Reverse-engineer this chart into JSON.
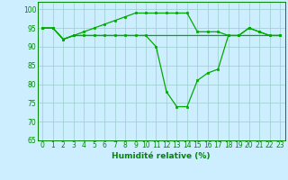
{
  "xlabel": "Humidité relative (%)",
  "background_color": "#cceeff",
  "grid_color": "#99cccc",
  "line_color": "#00aa00",
  "tick_color": "#008800",
  "ylim": [
    65,
    102
  ],
  "xlim": [
    -0.5,
    23.5
  ],
  "yticks": [
    65,
    70,
    75,
    80,
    85,
    90,
    95,
    100
  ],
  "xticks": [
    0,
    1,
    2,
    3,
    4,
    5,
    6,
    7,
    8,
    9,
    10,
    11,
    12,
    13,
    14,
    15,
    16,
    17,
    18,
    19,
    20,
    21,
    22,
    23
  ],
  "line1_x": [
    0,
    1,
    2,
    3,
    4,
    5,
    6,
    7,
    8,
    9,
    10,
    11,
    12,
    13,
    14,
    15,
    16,
    17,
    18,
    19,
    20,
    21,
    22,
    23
  ],
  "line1_y": [
    95,
    95,
    92,
    93,
    94,
    95,
    96,
    97,
    98,
    99,
    99,
    99,
    99,
    99,
    99,
    94,
    94,
    94,
    93,
    93,
    95,
    94,
    93,
    93
  ],
  "line2_x": [
    0,
    1,
    2,
    3,
    4,
    5,
    6,
    7,
    8,
    9,
    10,
    11,
    12,
    13,
    14,
    15,
    16,
    17,
    18,
    19,
    20,
    21,
    22,
    23
  ],
  "line2_y": [
    95,
    95,
    92,
    93,
    93,
    93,
    93,
    93,
    93,
    93,
    93,
    90,
    78,
    74,
    74,
    81,
    83,
    84,
    93,
    93,
    95,
    94,
    93,
    93
  ],
  "line3_x": [
    0,
    1,
    2,
    3,
    4,
    5,
    6,
    7,
    8,
    9,
    10,
    11,
    12,
    13,
    14,
    15,
    16,
    17,
    18,
    19,
    20,
    21,
    22,
    23
  ],
  "line3_y": [
    95,
    95,
    92,
    93,
    93,
    93,
    93,
    93,
    93,
    93,
    93,
    93,
    93,
    93,
    93,
    93,
    93,
    93,
    93,
    93,
    93,
    93,
    93,
    93
  ],
  "xlabel_fontsize": 6.5,
  "tick_fontsize": 5.5,
  "linewidth": 0.9,
  "markersize": 2.0
}
